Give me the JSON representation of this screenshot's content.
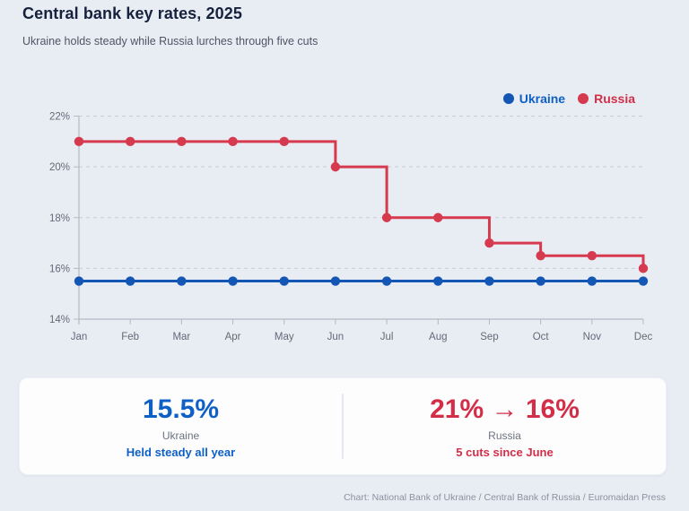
{
  "page": {
    "title": "Central bank key rates, 2025",
    "subtitle": "Ukraine holds steady while Russia lurches through five cuts",
    "source": "Chart: National Bank of Ukraine / Central Bank of Russia / Euromaidan Press"
  },
  "colors": {
    "ukraine_line": "#1356b4",
    "ukraine_text": "#0f60c6",
    "russia_line": "#d63a4e",
    "russia_text": "#d32e48",
    "grid": "#c8cdd8",
    "axis": "#b3bac5",
    "tick_label": "#636b78",
    "background": "#e8ecf3",
    "card": "#fdfdfe"
  },
  "legend": [
    {
      "label": "Ukraine",
      "color": "#1356b4",
      "text_color": "#0f60c6"
    },
    {
      "label": "Russia",
      "color": "#d63a4e",
      "text_color": "#d32e48"
    }
  ],
  "chart_data": {
    "type": "line",
    "step": true,
    "title": "Central bank key rates, 2025",
    "xlabel": "",
    "ylabel": "",
    "x": [
      "Jan",
      "Feb",
      "Mar",
      "Apr",
      "May",
      "Jun",
      "Jul",
      "Aug",
      "Sep",
      "Oct",
      "Nov",
      "Dec"
    ],
    "y_ticks": [
      14,
      16,
      18,
      20,
      22
    ],
    "y_tick_labels": [
      "14%",
      "16%",
      "18%",
      "20%",
      "22%"
    ],
    "ylim": [
      14,
      22
    ],
    "grid": "dashed-horizontal",
    "legend_position": "top-right",
    "series": [
      {
        "name": "Ukraine",
        "color": "#1356b4",
        "values": [
          15.5,
          15.5,
          15.5,
          15.5,
          15.5,
          15.5,
          15.5,
          15.5,
          15.5,
          15.5,
          15.5,
          15.5
        ]
      },
      {
        "name": "Russia",
        "color": "#d63a4e",
        "values": [
          21,
          21,
          21,
          21,
          21,
          20,
          18,
          18,
          17,
          16.5,
          16.5,
          16
        ]
      }
    ]
  },
  "stats": {
    "ukraine": {
      "value": "15.5%",
      "label": "Ukraine",
      "note": "Held steady all year",
      "color": "#0f60c6"
    },
    "russia": {
      "value": "21% → 16%",
      "label": "Russia",
      "note": "5 cuts since June",
      "color": "#d32e48"
    }
  }
}
